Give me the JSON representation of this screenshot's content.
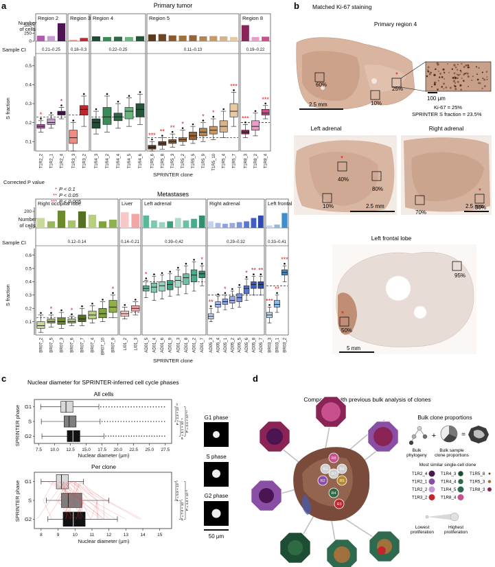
{
  "panel_a": {
    "label": "a",
    "primary_title": "Primary tumor",
    "metastases_title": "Metastases",
    "number_of_cells_label": [
      "Number",
      "of cells"
    ],
    "sample_ci_label": "Sample CI",
    "s_fraction_label": "S fraction",
    "xlabel": "SPRINTER clone",
    "corrected_p_title": "Corrected P value",
    "p_legend": [
      {
        "stars": "*",
        "text": "P < 0.1"
      },
      {
        "stars": "**",
        "text": "P < 0.05"
      },
      {
        "stars": "***",
        "text": "P < 0.005"
      }
    ],
    "primary_regions": [
      {
        "name": "Region 2",
        "ci": "0.21–0.25",
        "clones": [
          "T1R2_2",
          "T1R2_1",
          "T1R2_4"
        ],
        "colors": [
          "#b05bab",
          "#c89bd0",
          "#4a1550"
        ],
        "counts": [
          170,
          160,
          560
        ],
        "stars": [
          "*",
          "",
          "*"
        ],
        "box": [
          [
            0.15,
            0.17,
            0.18,
            0.19,
            0.21
          ],
          [
            0.17,
            0.19,
            0.2,
            0.22,
            0.24
          ],
          [
            0.22,
            0.24,
            0.25,
            0.26,
            0.28
          ]
        ],
        "ref": 0.23
      },
      {
        "name": "Region 3",
        "ci": "0.18–0.3",
        "clones": [
          "T1R3_3",
          "T1R3_2"
        ],
        "colors": [
          "#f28b82",
          "#c0262d"
        ],
        "counts": [
          40,
          100
        ],
        "stars": [
          "",
          ""
        ],
        "box": [
          [
            0.05,
            0.09,
            0.12,
            0.16,
            0.2
          ],
          [
            0.18,
            0.24,
            0.27,
            0.29,
            0.34
          ]
        ],
        "ref": 0.24
      },
      {
        "name": "Region 4",
        "ci": "0.22–0.25",
        "clones": [
          "T1R4_3",
          "T1R4_2",
          "T1R4_4",
          "T1R4_5",
          "T1R4_6"
        ],
        "colors": [
          "#1f4d33",
          "#3c8a58",
          "#2e6b45",
          "#67b57e",
          "#24573a"
        ],
        "counts": [
          150,
          130,
          140,
          130,
          155
        ],
        "stars": [
          "",
          "",
          "",
          "",
          ""
        ],
        "box": [
          [
            0.14,
            0.17,
            0.2,
            0.22,
            0.26
          ],
          [
            0.15,
            0.19,
            0.23,
            0.28,
            0.34
          ],
          [
            0.17,
            0.21,
            0.23,
            0.25,
            0.3
          ],
          [
            0.18,
            0.22,
            0.26,
            0.28,
            0.33
          ],
          [
            0.19,
            0.23,
            0.27,
            0.3,
            0.35
          ]
        ],
        "ref": 0.23
      },
      {
        "name": "Region 5",
        "ci": "0.11–0.13",
        "clones": [
          "T1R5_6",
          "T1R5_8",
          "T1R5_3",
          "T1R5_2",
          "T1R5_5",
          "T1R5_9",
          "T1R5_10",
          "T1R5_4",
          "T1R5_7"
        ],
        "colors": [
          "#5c3a1e",
          "#6e4525",
          "#8a5a2d",
          "#a0703d",
          "#94653a",
          "#b48452",
          "#c89a63",
          "#d8b38a",
          "#e8c9a2"
        ],
        "counts": [
          210,
          220,
          180,
          175,
          185,
          150,
          160,
          150,
          130
        ],
        "stars": [
          "***",
          "**",
          "**",
          "*",
          "",
          "*",
          "*",
          "",
          "***"
        ],
        "box": [
          [
            0.05,
            0.06,
            0.07,
            0.08,
            0.1
          ],
          [
            0.06,
            0.08,
            0.09,
            0.1,
            0.12
          ],
          [
            0.07,
            0.09,
            0.1,
            0.11,
            0.14
          ],
          [
            0.08,
            0.1,
            0.11,
            0.12,
            0.16
          ],
          [
            0.09,
            0.11,
            0.13,
            0.15,
            0.18
          ],
          [
            0.1,
            0.13,
            0.15,
            0.17,
            0.2
          ],
          [
            0.11,
            0.14,
            0.16,
            0.18,
            0.22
          ],
          [
            0.12,
            0.15,
            0.18,
            0.21,
            0.26
          ],
          [
            0.18,
            0.23,
            0.26,
            0.3,
            0.36
          ]
        ],
        "ref": 0.12
      },
      {
        "name": "Region 8",
        "ci": "0.19–0.22",
        "clones": [
          "T1R8_3",
          "T1R8_2",
          "T1R8_4"
        ],
        "colors": [
          "#8a2457",
          "#e89cc7",
          "#c7508d"
        ],
        "counts": [
          500,
          130,
          140
        ],
        "stars": [
          "***",
          "",
          "***"
        ],
        "box": [
          [
            0.12,
            0.14,
            0.15,
            0.16,
            0.19
          ],
          [
            0.13,
            0.16,
            0.18,
            0.21,
            0.25
          ],
          [
            0.22,
            0.24,
            0.25,
            0.27,
            0.29
          ]
        ],
        "ref": 0.2
      }
    ],
    "primary_y_ticks": [
      "0.1",
      "0.2",
      "0.3",
      "0.4",
      "0.5"
    ],
    "primary_count_ticks": [
      "0",
      "250",
      "500"
    ],
    "met_regions": [
      {
        "name": "Right occipital lobe",
        "ci": "0.12–0.14",
        "clones": [
          "BR07_2",
          "BR07_5",
          "BR07_3",
          "BR07_6",
          "BR07_7",
          "BR07_4",
          "BR07_10",
          "BR07_9"
        ],
        "colors": [
          "#c9d99a",
          "#9bb858",
          "#6d8a2a",
          "#a8c46a",
          "#557023",
          "#b8cf80",
          "#7fa23c",
          "#90b04a"
        ],
        "counts": [
          120,
          80,
          210,
          90,
          200,
          160,
          80,
          100
        ],
        "stars": [
          "",
          "*",
          "",
          "*",
          "",
          "",
          "",
          "*"
        ],
        "box": [
          [
            0.02,
            0.05,
            0.07,
            0.1,
            0.15
          ],
          [
            0.06,
            0.09,
            0.1,
            0.12,
            0.15
          ],
          [
            0.05,
            0.08,
            0.1,
            0.13,
            0.17
          ],
          [
            0.07,
            0.09,
            0.1,
            0.12,
            0.14
          ],
          [
            0.07,
            0.1,
            0.12,
            0.15,
            0.2
          ],
          [
            0.09,
            0.12,
            0.15,
            0.18,
            0.22
          ],
          [
            0.1,
            0.13,
            0.16,
            0.2,
            0.25
          ],
          [
            0.13,
            0.17,
            0.21,
            0.26,
            0.3
          ]
        ],
        "ref": 0.13
      },
      {
        "name": "Liver",
        "ci": "0.14–0.21",
        "clones": [
          "LI01_2",
          "LI01_3"
        ],
        "colors": [
          "#f7c8c8",
          "#f4a5a5"
        ],
        "counts": [
          190,
          170
        ],
        "stars": [
          "",
          ""
        ],
        "box": [
          [
            0.12,
            0.14,
            0.16,
            0.18,
            0.21
          ],
          [
            0.15,
            0.18,
            0.2,
            0.22,
            0.25
          ]
        ],
        "ref": 0.17
      },
      {
        "name": "Left adrenal",
        "ci": "0.39–0.42",
        "clones": [
          "AD01_5",
          "AD01_4",
          "AD01_6",
          "AD01_9",
          "AD01_3",
          "AD01_8",
          "AD01_2",
          "AD01_7"
        ],
        "colors": [
          "#5ab89a",
          "#7dc9ae",
          "#96d4bd",
          "#3fa080",
          "#a9dcc9",
          "#6cc1a4",
          "#48ab8c",
          "#2f8f6e"
        ],
        "counts": [
          150,
          90,
          70,
          80,
          120,
          90,
          110,
          150
        ],
        "stars": [
          "*",
          "",
          "",
          "",
          "",
          "",
          "",
          "*"
        ],
        "box": [
          [
            0.28,
            0.33,
            0.35,
            0.37,
            0.41
          ],
          [
            0.26,
            0.32,
            0.36,
            0.39,
            0.44
          ],
          [
            0.27,
            0.33,
            0.37,
            0.4,
            0.45
          ],
          [
            0.29,
            0.34,
            0.38,
            0.41,
            0.46
          ],
          [
            0.3,
            0.36,
            0.41,
            0.44,
            0.49
          ],
          [
            0.31,
            0.38,
            0.43,
            0.46,
            0.52
          ],
          [
            0.33,
            0.4,
            0.45,
            0.49,
            0.55
          ],
          [
            0.37,
            0.43,
            0.46,
            0.48,
            0.52
          ]
        ],
        "ref": 0.4
      },
      {
        "name": "Right adrenal",
        "ci": "0.29–0.32",
        "clones": [
          "AD05_3",
          "AD05_4",
          "AD05_1",
          "AD05_2",
          "AD05_5",
          "AD05_6",
          "AD05_8",
          "AD05_7"
        ],
        "colors": [
          "#c6d0f0",
          "#a8b8ea",
          "#8da0e0",
          "#98a9e3",
          "#7b92dc",
          "#5a76d2",
          "#3f5ec6",
          "#2e49b0"
        ],
        "counts": [
          80,
          60,
          50,
          60,
          70,
          80,
          120,
          150
        ],
        "stars": [
          "**",
          "",
          "*",
          "",
          "",
          "*",
          "**",
          "**"
        ],
        "box": [
          [
            0.1,
            0.12,
            0.14,
            0.16,
            0.2
          ],
          [
            0.17,
            0.21,
            0.23,
            0.25,
            0.29
          ],
          [
            0.19,
            0.23,
            0.25,
            0.27,
            0.3
          ],
          [
            0.2,
            0.24,
            0.26,
            0.29,
            0.33
          ],
          [
            0.21,
            0.25,
            0.28,
            0.31,
            0.36
          ],
          [
            0.26,
            0.31,
            0.35,
            0.37,
            0.42
          ],
          [
            0.3,
            0.35,
            0.38,
            0.4,
            0.44
          ],
          [
            0.3,
            0.35,
            0.38,
            0.4,
            0.44
          ]
        ],
        "ref": 0.3
      },
      {
        "name": "Left frontal lobe",
        "ci": "0.33–0.41",
        "clones": [
          "BR03_3",
          "BR03_1",
          "BR03_2"
        ],
        "colors": [
          "#bcd7ef",
          "#8bbce6",
          "#3d8dd1"
        ],
        "counts": [
          30,
          40,
          180
        ],
        "stars": [
          "***",
          "**",
          "***"
        ],
        "box": [
          [
            0.09,
            0.13,
            0.15,
            0.17,
            0.21
          ],
          [
            0.17,
            0.21,
            0.23,
            0.26,
            0.3
          ],
          [
            0.4,
            0.45,
            0.47,
            0.49,
            0.52
          ]
        ],
        "ref": 0.37
      }
    ],
    "met_y_ticks": [
      "0.1",
      "0.2",
      "0.3",
      "0.4",
      "0.5",
      "0.6"
    ],
    "met_count_ticks": [
      "0",
      "200"
    ]
  },
  "panel_b": {
    "label": "b",
    "title": "Matched Ki-67 staining",
    "primary_region_4": "Primary region 4",
    "left_adrenal": "Left adrenal",
    "right_adrenal": "Right adrenal",
    "left_frontal_lobe": "Left frontal lobe",
    "pct_p4": [
      "60%",
      "25%",
      "10%"
    ],
    "pct_la": [
      "40%",
      "80%",
      "10%"
    ],
    "pct_ra": [
      "70%",
      "30%"
    ],
    "pct_lf": [
      "95%",
      "50%"
    ],
    "scale_25": "2.5 mm",
    "scale_100": "100 μm",
    "scale_5": "5 mm",
    "ki67_text": "Ki-67 = 25%",
    "sprinter_text": "SPRINTER S fraction = 23.5%"
  },
  "panel_c": {
    "label": "c",
    "title": "Nuclear diameter for SPRINTER-inferred cell cycle phases",
    "all_cells": "All cells",
    "per_clone": "Per clone",
    "ylabel": "SPRINTER phase",
    "xlabel": "Nuclear diameter (μm)",
    "phases": [
      "G1",
      "S",
      "G2"
    ],
    "all_x_ticks": [
      "7.5",
      "10.0",
      "12.5",
      "15.0",
      "17.5",
      "20.0",
      "22.5",
      "25.0",
      "27.5"
    ],
    "clone_x_ticks": [
      "8",
      "9",
      "10",
      "11",
      "12",
      "13",
      "14",
      "15"
    ],
    "all_boxes": [
      [
        7.8,
        11.0,
        11.8,
        12.9,
        17.0
      ],
      [
        7.9,
        11.5,
        12.3,
        13.4,
        17.2
      ],
      [
        8.0,
        12.0,
        12.9,
        14.0,
        17.8
      ]
    ],
    "clone_boxes": [
      [
        8.0,
        8.9,
        9.2,
        9.6,
        10.5
      ],
      [
        8.3,
        9.2,
        9.6,
        10.4,
        12.0
      ],
      [
        8.4,
        9.3,
        9.9,
        10.6,
        12.5
      ]
    ],
    "all_p": [
      "P = 2.3 × 10⁻²²",
      "P = 3.1 × 10⁻⁸",
      "P = 3.4 × 10⁻⁵⁴"
    ],
    "clone_p": [
      "P = 5.9 × 10⁻³",
      "P = 7.0 × 10⁻⁴",
      "P = 4.3 × 10⁻²"
    ],
    "g1_phase": "G1 phase",
    "s_phase": "S phase",
    "g2_phase": "G2 phase",
    "scale": "50 μm"
  },
  "panel_d": {
    "label": "d",
    "title": "Comparison with previous bulk analysis of clones",
    "bulk_title": "Bulk clone proportions",
    "bulk_phylogeny": [
      "Bulk",
      "phylogeny"
    ],
    "bulk_sample": [
      "Bulk sample",
      "clone proportions"
    ],
    "most_similar": "Most similar single-cell clone",
    "legend": [
      {
        "name": "T1R2_4",
        "color": "#4a1550",
        "size": 6
      },
      {
        "name": "T1R4_3",
        "color": "#1f4d33",
        "size": 5
      },
      {
        "name": "T1R5_8",
        "color": "#6e4525",
        "size": 2
      },
      {
        "name": "T1R2_1",
        "color": "#8a4fa5",
        "size": 6
      },
      {
        "name": "T1R4_4",
        "color": "#2e6b45",
        "size": 5
      },
      {
        "name": "T1R5_3",
        "color": "#a0703d",
        "size": 3
      },
      {
        "name": "T1R2_2",
        "color": "#c89bd0",
        "size": 6
      },
      {
        "name": "T1R4_5",
        "color": "#2f6a4f",
        "size": 6
      },
      {
        "name": "T1R8_3",
        "color": "#8a2457",
        "size": 4
      },
      {
        "name": "T1R3_2",
        "color": "#c0262d",
        "size": 6
      },
      {
        "name": "T1R8_4",
        "color": "#c7508d",
        "size": 6
      }
    ],
    "lowest": [
      "Lowest",
      "proliferation"
    ],
    "highest": [
      "Highest",
      "proliferation"
    ],
    "nodes": [
      "R8",
      "R1",
      "R6",
      "R2",
      "R7",
      "R5",
      "R4",
      "R3"
    ]
  }
}
